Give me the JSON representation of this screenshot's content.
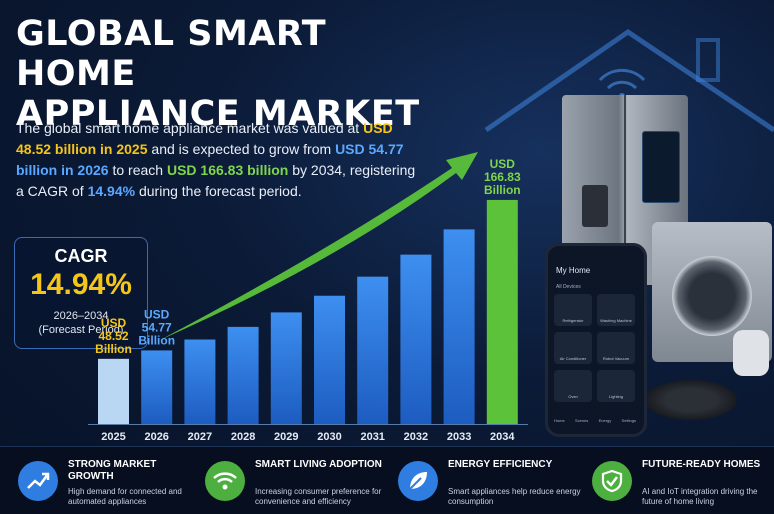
{
  "title_line1": "GLOBAL SMART HOME",
  "title_line2": "APPLIANCE MARKET",
  "description": {
    "p1": "The global smart home appliance market was valued at ",
    "v2025": "USD 48.52 billion in 2025",
    "p2": " and is expected to grow from ",
    "v2026": "USD 54.77 billion in 2026",
    "p3": " to reach ",
    "v2034": "USD 166.83 billion",
    "p4": " by 2034, registering a CAGR of ",
    "cagr": "14.94%",
    "p5": " during the forecast period."
  },
  "cagr_box": {
    "label": "CAGR",
    "value": "14.94%",
    "period": "2026–2034",
    "period_note": "(Forecast Period)"
  },
  "chart_data": {
    "type": "bar",
    "categories": [
      "2025",
      "2026",
      "2027",
      "2028",
      "2029",
      "2030",
      "2031",
      "2032",
      "2033",
      "2034"
    ],
    "values": [
      48.52,
      54.77,
      62.9,
      72.3,
      83.1,
      95.5,
      109.7,
      126.1,
      144.9,
      166.83
    ],
    "ylim": [
      0,
      175
    ],
    "value_labels": [
      {
        "index": 0,
        "lines": [
          "USD",
          "48.52",
          "Billion"
        ],
        "color": "#f5c518"
      },
      {
        "index": 1,
        "lines": [
          "USD",
          "54.77",
          "Billion"
        ],
        "color": "#5aa8ff"
      },
      {
        "index": 9,
        "lines": [
          "USD",
          "166.83",
          "Billion"
        ],
        "color": "#7fd64b"
      }
    ],
    "colors": {
      "first": "#b9d6f2",
      "mid": "#2f7de1",
      "last": "#5cc23a",
      "trend": "#5cc23a"
    }
  },
  "phone": {
    "title": "My Home",
    "subtitle": "All Devices",
    "tiles": [
      "Refrigerator",
      "Washing Machine",
      "Air Conditioner",
      "Robot Vacuum",
      "Oven",
      "Lighting"
    ],
    "nav": [
      "Home",
      "Scenes",
      "Energy",
      "Settings"
    ]
  },
  "features": [
    {
      "title": "STRONG MARKET GROWTH",
      "text": "High demand for connected and automated appliances",
      "color": "#2f7de1",
      "icon": "growth-chart-icon"
    },
    {
      "title": "SMART LIVING ADOPTION",
      "text": "Increasing consumer preference for convenience and efficiency",
      "color": "#4caf3f",
      "icon": "wifi-icon"
    },
    {
      "title": "ENERGY EFFICIENCY",
      "text": "Smart appliances help reduce energy consumption",
      "color": "#2f7de1",
      "icon": "leaf-icon"
    },
    {
      "title": "FUTURE-READY HOMES",
      "text": "AI and IoT integration driving the future of home living",
      "color": "#4caf3f",
      "icon": "shield-check-icon"
    }
  ]
}
